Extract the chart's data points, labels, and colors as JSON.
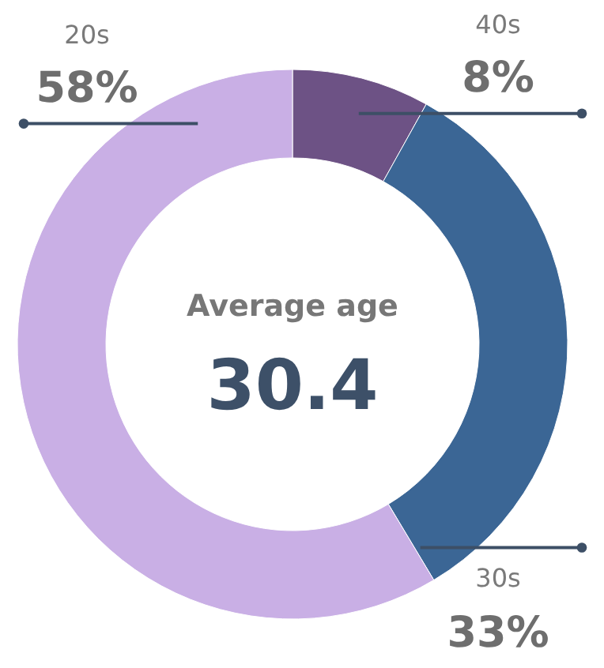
{
  "chart_data": {
    "type": "donut",
    "categories": [
      "40s",
      "30s",
      "20s"
    ],
    "values": [
      8,
      33,
      58
    ],
    "colors": [
      "#6d5285",
      "#3b6695",
      "#c9afe5"
    ],
    "value_labels": [
      "8%",
      "33%",
      "58%"
    ],
    "annotations": [
      "Average age",
      "30.4"
    ]
  }
}
